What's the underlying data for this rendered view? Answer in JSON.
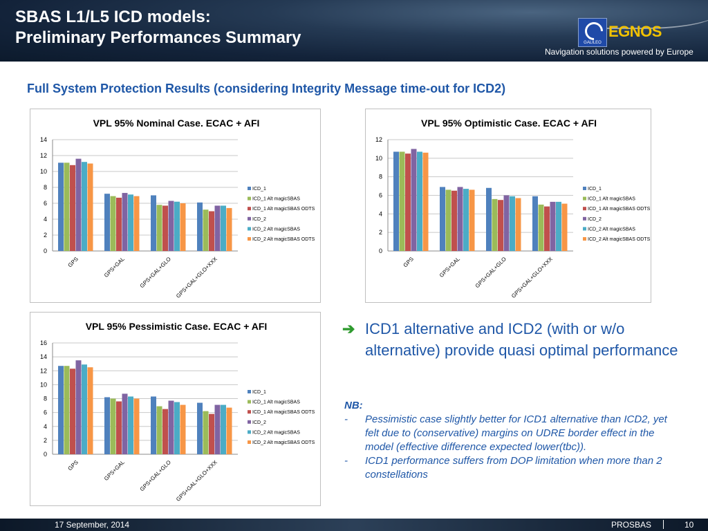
{
  "header": {
    "title_line1": "SBAS L1/L5 ICD models:",
    "title_line2": "Preliminary Performances Summary",
    "logo_label": "GALILEO",
    "brand": "EGNOS",
    "tagline": "Navigation solutions powered by Europe"
  },
  "subtitle": "Full System Protection Results (considering Integrity Message time-out for ICD2)",
  "colors": {
    "header_bg": "#1b2d45",
    "title_blue": "#1f57a7",
    "arrow_green": "#2e9a2e",
    "series": [
      "#4f81bd",
      "#9bbb59",
      "#c0504d",
      "#8064a2",
      "#4bacc6",
      "#f79646"
    ]
  },
  "chart_data": [
    {
      "type": "bar",
      "title": "VPL 95% Nominal Case. ECAC + AFI",
      "categories": [
        "GPS",
        "GPS+GAL",
        "GPS+GAL+GLO",
        "GPS+GAL+GLO+XXX"
      ],
      "ylim": [
        0,
        14
      ],
      "yticks": [
        0,
        2,
        4,
        6,
        8,
        10,
        12,
        14
      ],
      "grid": true,
      "legend": "right",
      "series": [
        {
          "name": "ICD_1",
          "values": [
            11.1,
            7.2,
            7.0,
            6.1
          ]
        },
        {
          "name": "ICD_1 Alt magicSBAS",
          "values": [
            11.1,
            6.9,
            5.8,
            5.2
          ]
        },
        {
          "name": "ICD_1 Alt magicSBAS ODTS",
          "values": [
            10.8,
            6.7,
            5.7,
            5.0
          ]
        },
        {
          "name": "ICD_2",
          "values": [
            11.6,
            7.3,
            6.3,
            5.7
          ]
        },
        {
          "name": "ICD_2 Alt magicSBAS",
          "values": [
            11.2,
            7.1,
            6.2,
            5.7
          ]
        },
        {
          "name": "ICD_2 Alt magicSBAS ODTS",
          "values": [
            11.0,
            6.9,
            6.0,
            5.4
          ]
        }
      ]
    },
    {
      "type": "bar",
      "title": "VPL 95% Optimistic Case. ECAC + AFI",
      "categories": [
        "GPS",
        "GPS+GAL",
        "GPS+GAL+GLO",
        "GPS+GAL+GLO+XXX"
      ],
      "ylim": [
        0,
        12
      ],
      "yticks": [
        0,
        2,
        4,
        6,
        8,
        10,
        12
      ],
      "grid": true,
      "legend": "right",
      "series": [
        {
          "name": "ICD_1",
          "values": [
            10.7,
            6.9,
            6.8,
            5.9
          ]
        },
        {
          "name": "ICD_1 Alt magicSBAS",
          "values": [
            10.7,
            6.6,
            5.6,
            5.0
          ]
        },
        {
          "name": "ICD_1 Alt magicSBAS ODTS",
          "values": [
            10.5,
            6.5,
            5.5,
            4.8
          ]
        },
        {
          "name": "ICD_2",
          "values": [
            11.0,
            6.9,
            6.0,
            5.3
          ]
        },
        {
          "name": "ICD_2 Alt magicSBAS",
          "values": [
            10.7,
            6.7,
            5.9,
            5.3
          ]
        },
        {
          "name": "ICD_2 Alt magicSBAS ODTS",
          "values": [
            10.6,
            6.6,
            5.7,
            5.1
          ]
        }
      ]
    },
    {
      "type": "bar",
      "title": "VPL 95% Pessimistic Case. ECAC + AFI",
      "categories": [
        "GPS",
        "GPS+GAL",
        "GPS+GAL+GLO",
        "GPS+GAL+GLO+XXX"
      ],
      "ylim": [
        0,
        16
      ],
      "yticks": [
        0,
        2,
        4,
        6,
        8,
        10,
        12,
        14,
        16
      ],
      "grid": true,
      "legend": "right",
      "series": [
        {
          "name": "ICD_1",
          "values": [
            12.7,
            8.2,
            8.3,
            7.4
          ]
        },
        {
          "name": "ICD_1 Alt magicSBAS",
          "values": [
            12.7,
            8.0,
            6.9,
            6.2
          ]
        },
        {
          "name": "ICD_1 Alt magicSBAS ODTS",
          "values": [
            12.3,
            7.6,
            6.5,
            5.8
          ]
        },
        {
          "name": "ICD_2",
          "values": [
            13.5,
            8.7,
            7.7,
            7.1
          ]
        },
        {
          "name": "ICD_2 Alt magicSBAS",
          "values": [
            12.9,
            8.3,
            7.5,
            7.1
          ]
        },
        {
          "name": "ICD_2 Alt magicSBAS ODTS",
          "values": [
            12.5,
            8.0,
            7.1,
            6.7
          ]
        }
      ]
    }
  ],
  "bullet": {
    "arrow": "➔",
    "text": "ICD1 alternative  and ICD2 (with or w/o alternative) provide quasi optimal performance"
  },
  "nb": {
    "label": "NB:",
    "items": [
      {
        "dash": "-",
        "text": "Pessimistic case slightly better for ICD1 alternative than ICD2, yet felt due to (conservative) margins on UDRE border effect in the model (effective difference expected lower(tbc))."
      },
      {
        "dash": "-",
        "text": "ICD1 performance suffers from DOP limitation when more than 2 constellations"
      }
    ]
  },
  "footer": {
    "date": "17 September, 2014",
    "org": "PROSBAS",
    "page": "10"
  }
}
